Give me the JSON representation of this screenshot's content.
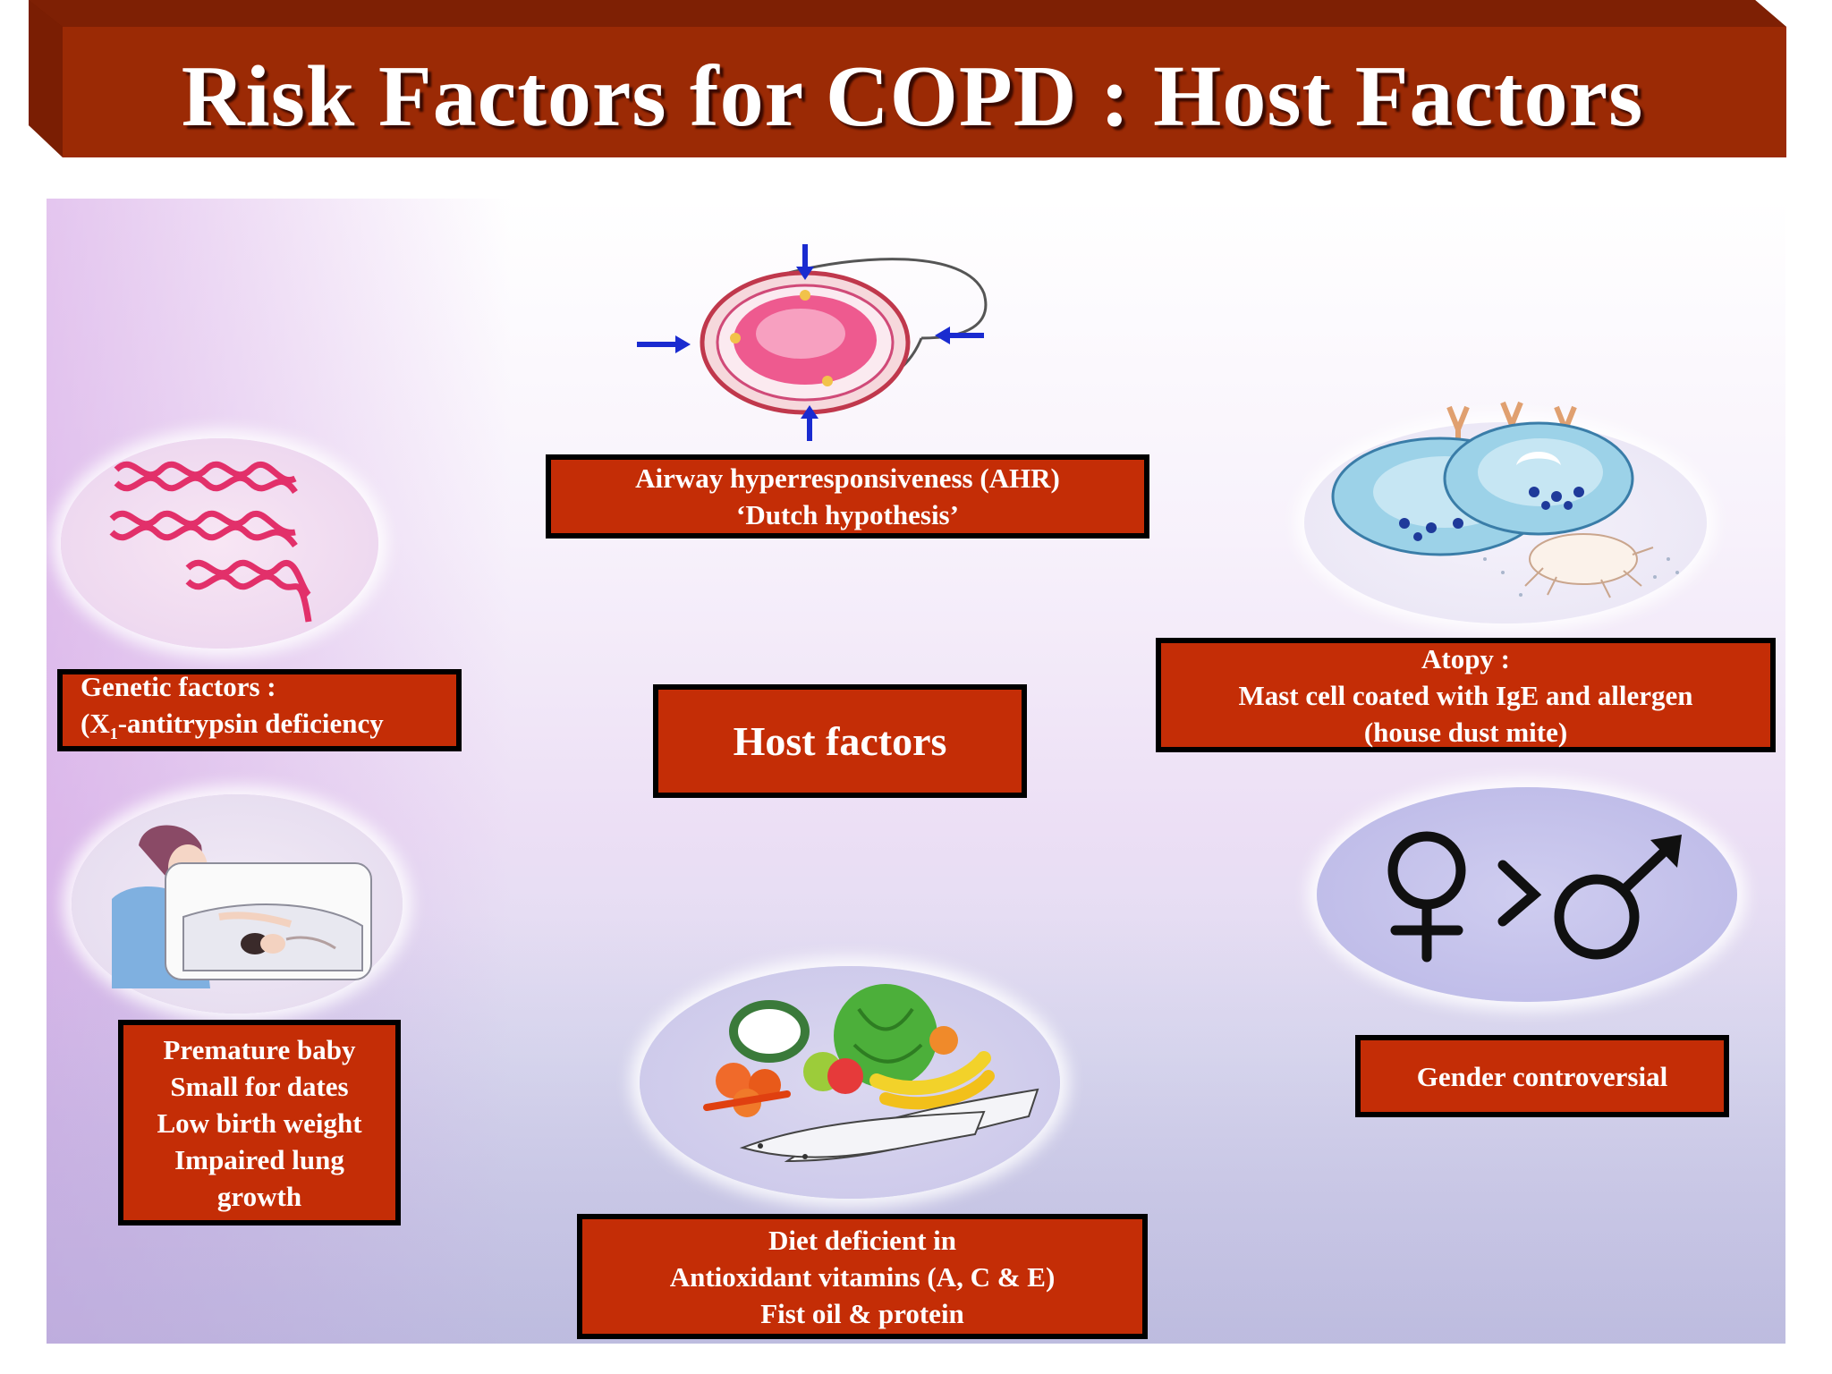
{
  "title": "Risk Factors for COPD : Host Factors",
  "colors": {
    "banner": "#9b2a05",
    "banner_dark": "#6b1a02",
    "box_fill": "#c42d06",
    "box_border": "#000000",
    "box_text": "#ffffff"
  },
  "center_box": {
    "label": "Host factors"
  },
  "boxes": {
    "airway": {
      "lines": [
        "Airway hyperresponsiveness (AHR)",
        "‘Dutch hypothesis’"
      ]
    },
    "genetic": {
      "line1": "Genetic factors :",
      "line2_prefix": "(X",
      "line2_sub": "1",
      "line2_suffix": "-antitrypsin deficiency"
    },
    "atopy": {
      "lines": [
        "Atopy :",
        "Mast cell coated with IgE and allergen",
        "(house dust mite)"
      ]
    },
    "premature": {
      "lines": [
        "Premature baby",
        "Small for dates",
        "Low birth weight",
        "Impaired lung",
        "growth"
      ]
    },
    "gender": {
      "lines": [
        "Gender controversial"
      ]
    },
    "diet": {
      "lines": [
        "Diet deficient in",
        "Antioxidant vitamins (A, C & E)",
        "Fist oil & protein"
      ]
    }
  },
  "illustrations": {
    "airway": "airway-cross-section-icon",
    "genetic": "dna-helix-icon",
    "atopy": "mast-cell-dust-mite-icon",
    "premature": "mother-and-baby-icon",
    "gender": "gender-symbols-icon",
    "diet": "fruits-vegetables-fish-icon"
  }
}
